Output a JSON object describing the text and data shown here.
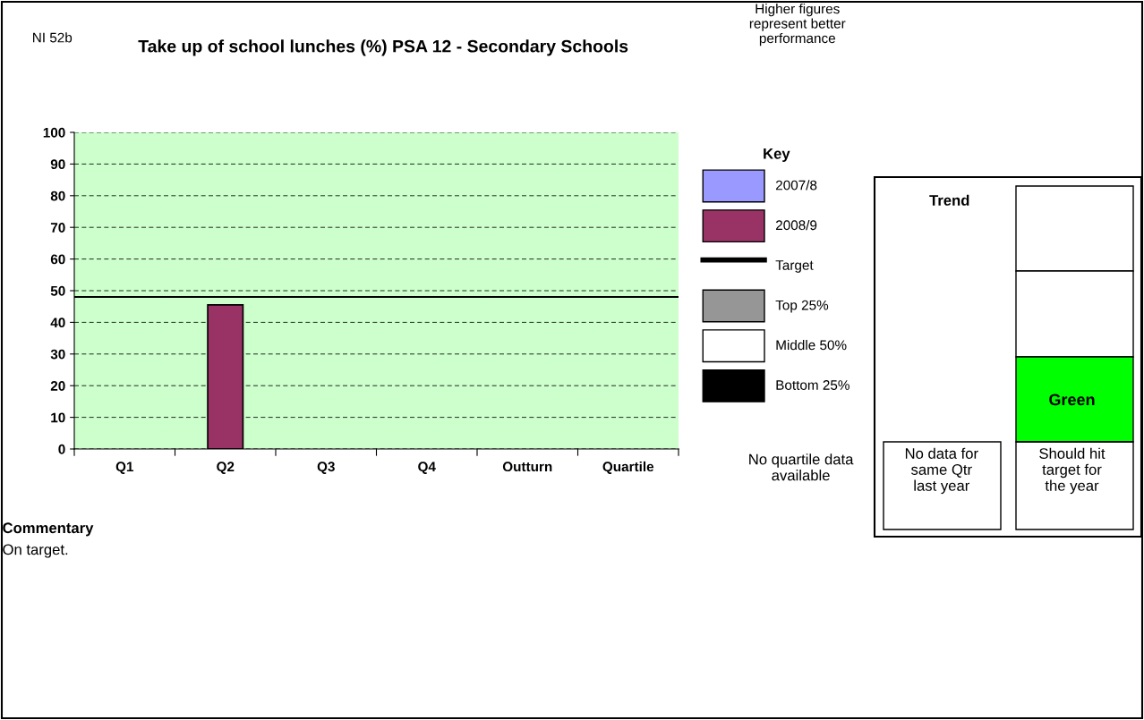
{
  "chart_data": {
    "type": "bar",
    "title": "Take up of school lunches (%) PSA 12 - Secondary Schools",
    "categories": [
      "Q1",
      "Q2",
      "Q3",
      "Q4",
      "Outturn",
      "Quartile"
    ],
    "series": [
      {
        "name": "2007/8",
        "color": "#9999ff",
        "values": [
          null,
          null,
          null,
          null,
          null,
          null
        ]
      },
      {
        "name": "2008/9",
        "color": "#993366",
        "values": [
          null,
          45.5,
          null,
          null,
          null,
          null
        ]
      },
      {
        "name": "Top 25%",
        "color": "#969696",
        "values": [
          null,
          null,
          null,
          null,
          null,
          null
        ]
      },
      {
        "name": "Middle 50%",
        "color": "#ffffff",
        "values": [
          null,
          null,
          null,
          null,
          null,
          null
        ]
      },
      {
        "name": "Bottom 25%",
        "color": "#000000",
        "values": [
          null,
          null,
          null,
          null,
          null,
          null
        ]
      }
    ],
    "ref_lines": [
      {
        "axis": "y",
        "value": 48,
        "label": "Target",
        "color": "#000000",
        "line_style": "solid"
      }
    ],
    "ylim": [
      0,
      100
    ],
    "yticks": [
      0,
      10,
      20,
      30,
      40,
      50,
      60,
      70,
      80,
      90,
      100
    ],
    "grid": "y",
    "legend": "right",
    "legend_title": "Key",
    "annotations": [
      "NI 52b",
      "Higher figures\nrepresent better\nperformance",
      "No quartile data\navailable",
      "Trend",
      "Green",
      "No data for\nsame Qtr\nlast year",
      "Should hit\ntarget for\nthe year",
      "Commentary",
      "On target."
    ]
  }
}
